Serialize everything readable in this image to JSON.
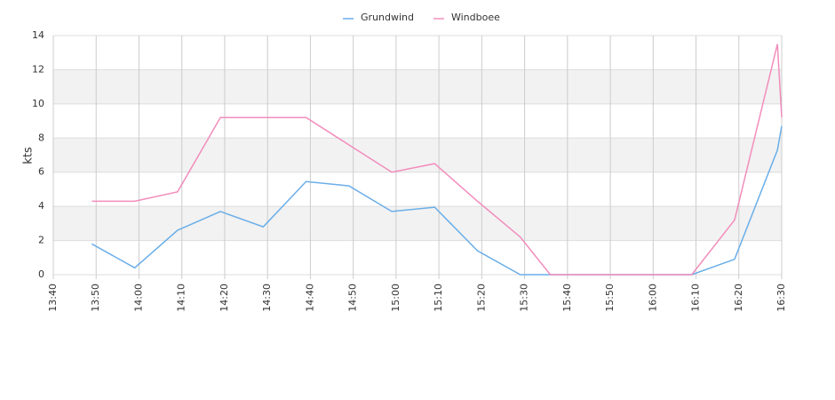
{
  "chart_data": {
    "type": "line",
    "y_label": "kts",
    "x": [
      "13:49",
      "13:59",
      "14:09",
      "14:19",
      "14:29",
      "14:39",
      "14:49",
      "14:59",
      "15:09",
      "15:19",
      "15:29",
      "15:36",
      "15:49",
      "15:59",
      "16:09",
      "16:19",
      "16:29",
      "16:30"
    ],
    "series": [
      {
        "name": "Grundwind",
        "color": "#6aaee8",
        "values": [
          1.8,
          0.4,
          2.6,
          3.7,
          2.8,
          5.45,
          5.2,
          3.7,
          3.95,
          1.4,
          0,
          0,
          0,
          0,
          0,
          0.9,
          7.3,
          8.7
        ]
      },
      {
        "name": "Windboee",
        "color": "#f28dbc",
        "values": [
          4.3,
          4.3,
          4.85,
          9.2,
          9.2,
          9.2,
          7.6,
          6.0,
          6.5,
          4.3,
          2.2,
          0,
          0,
          0,
          0,
          3.2,
          13.5,
          9.2
        ]
      }
    ],
    "xlim": [
      "13:40",
      "16:30"
    ],
    "xticks": [
      "13:40",
      "13:50",
      "14:00",
      "14:10",
      "14:20",
      "14:30",
      "14:40",
      "14:50",
      "15:00",
      "15:10",
      "15:20",
      "15:30",
      "15:40",
      "15:50",
      "16:00",
      "16:10",
      "16:20",
      "16:30"
    ],
    "ylim": [
      0,
      14
    ],
    "yticks": [
      0,
      2,
      4,
      6,
      8,
      10,
      12,
      14
    ],
    "grid": true,
    "legend": "top"
  }
}
